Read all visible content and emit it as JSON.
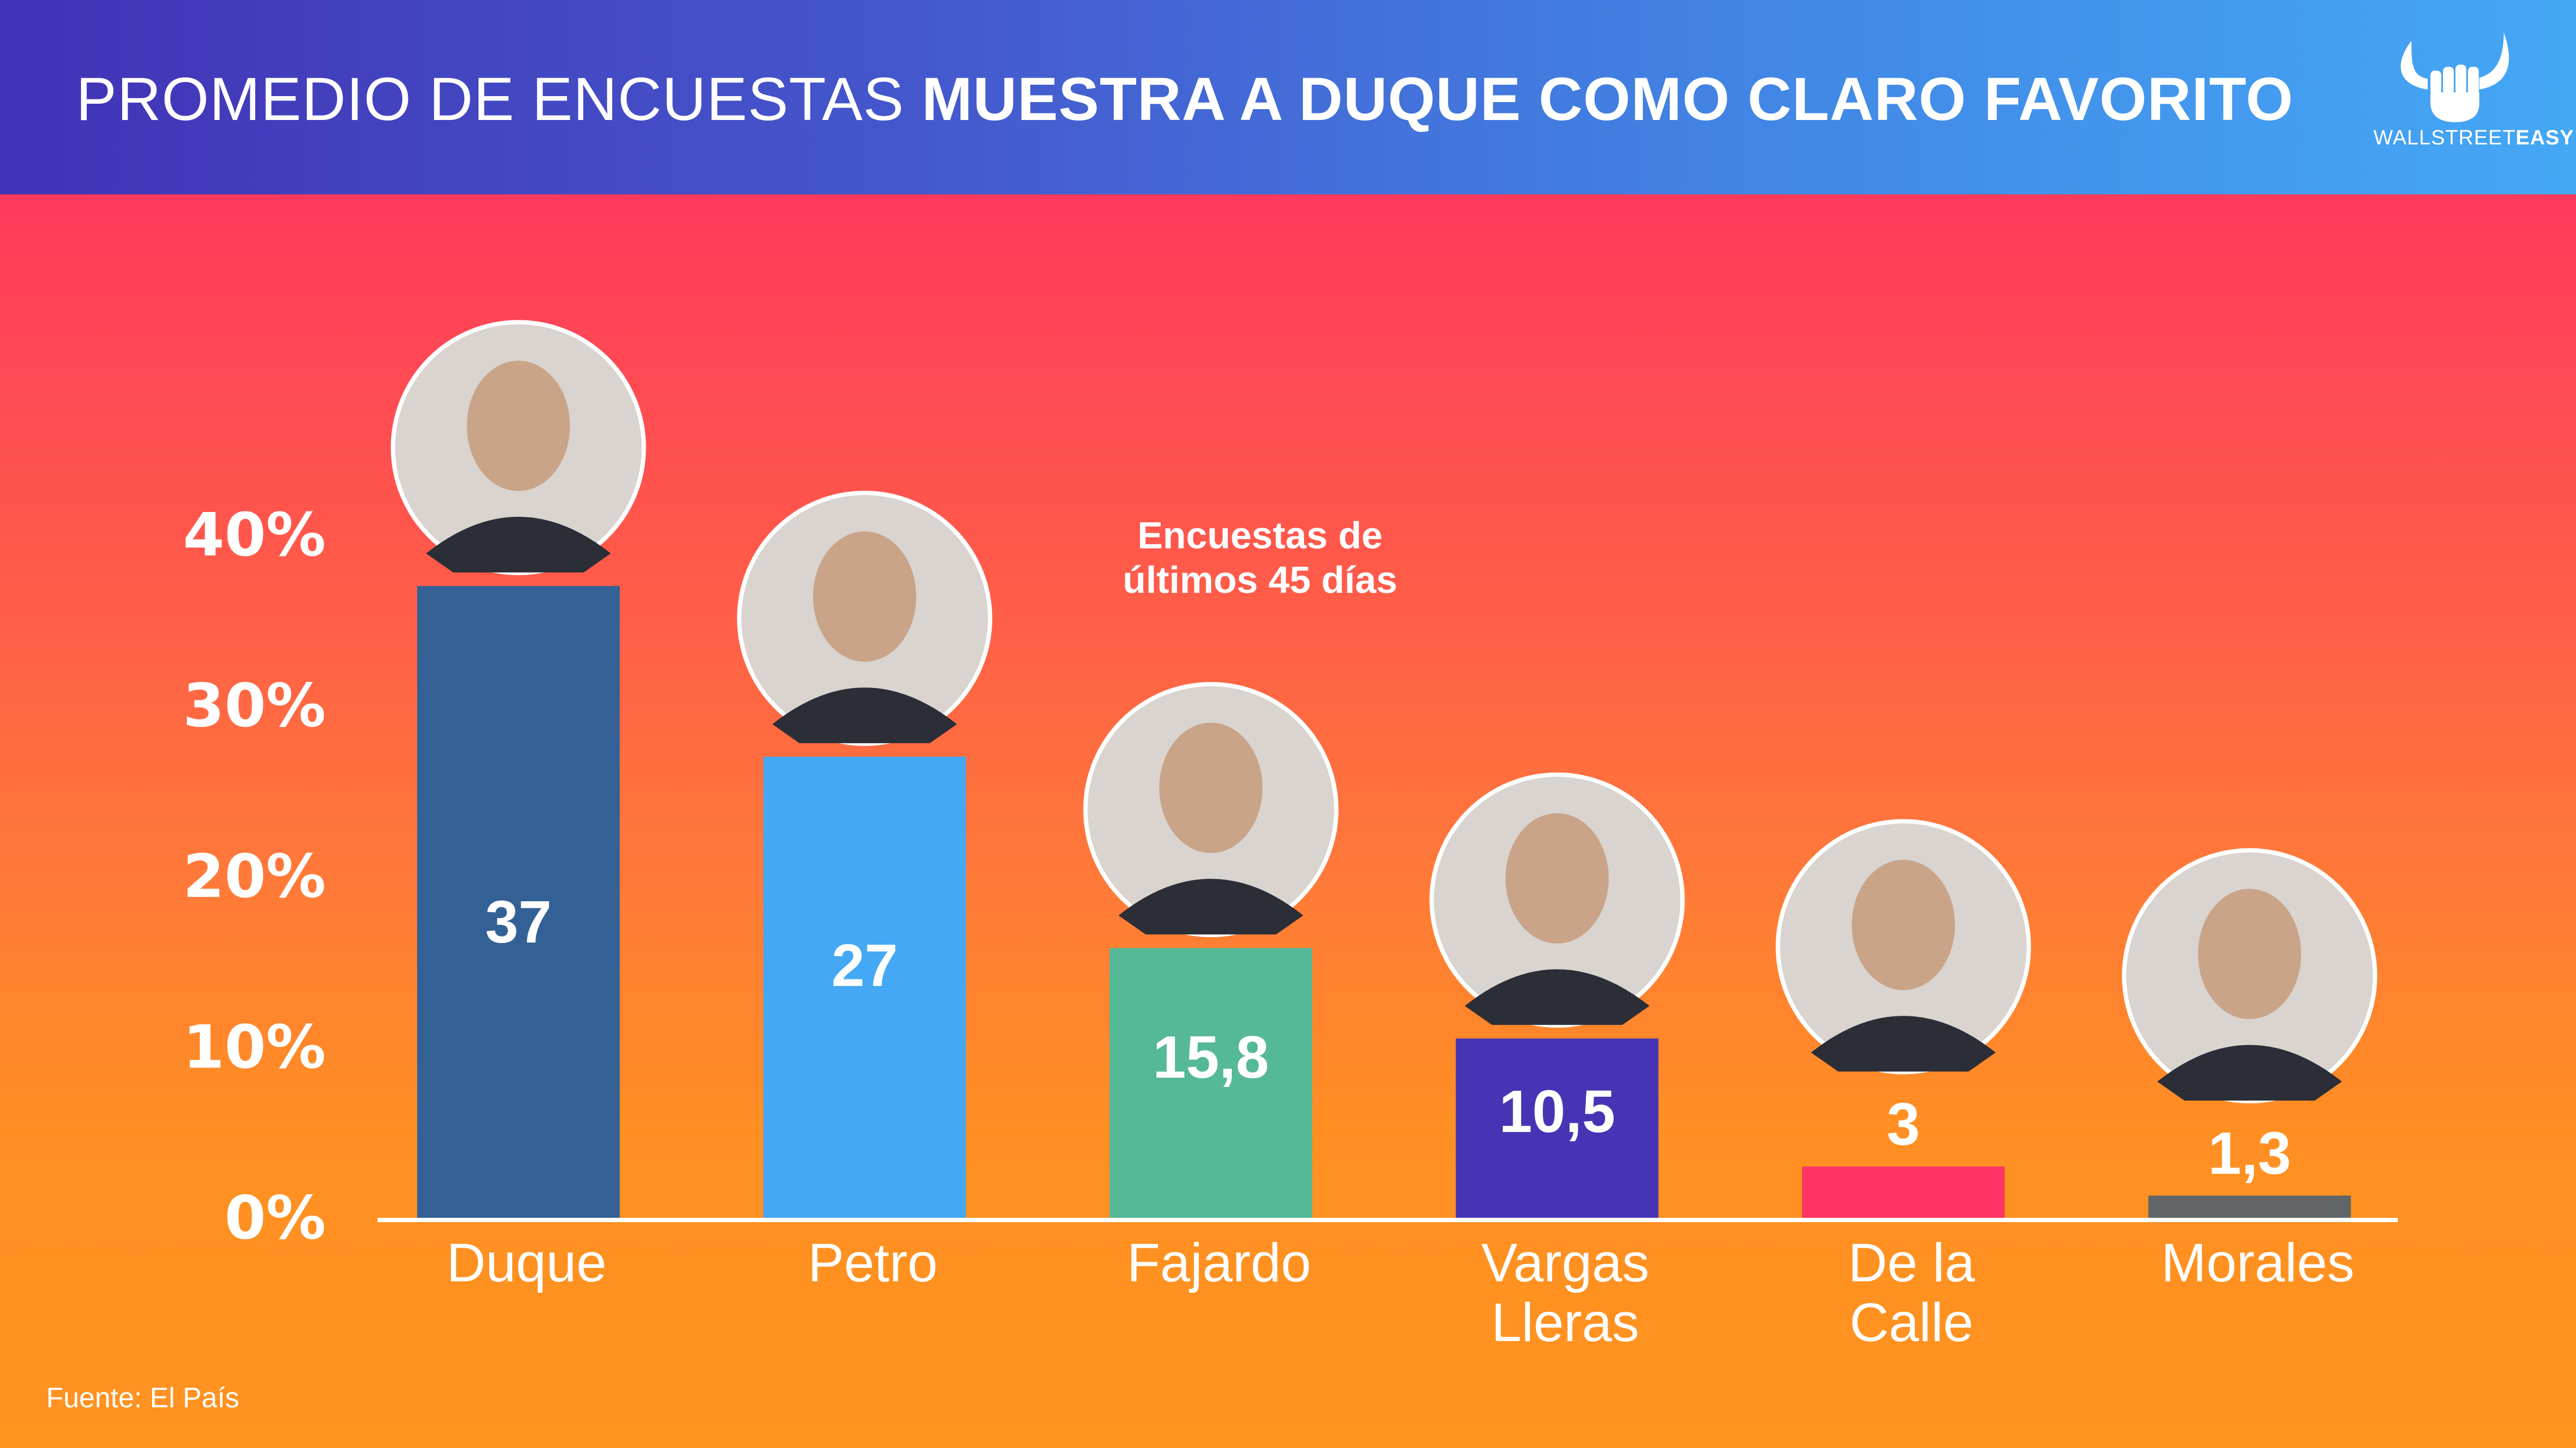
{
  "header": {
    "title_light": "PROMEDIO DE ENCUESTAS ",
    "title_bold": "MUESTRA A DUQUE COMO CLARO FAVORITO",
    "logo_icon": "bull-horns-fist-icon",
    "logo_text_light": "WALLSTREET",
    "logo_text_bold": "EASY",
    "gradient_colors": [
      "#4232B5",
      "#44A8F5"
    ]
  },
  "background_gradient": [
    "#FF3A5C",
    "#FF9320"
  ],
  "annotation": {
    "line1": "Encuestas de",
    "line2": "últimos 45 días"
  },
  "source": "Fuente: El País",
  "chart_data": {
    "type": "bar",
    "title": "PROMEDIO DE ENCUESTAS MUESTRA A DUQUE COMO CLARO FAVORITO",
    "xlabel": "",
    "ylabel": "",
    "ylim": [
      0,
      40
    ],
    "yticks": [
      0,
      10,
      20,
      30,
      40
    ],
    "ytick_labels": [
      "0%",
      "10%",
      "20%",
      "30%",
      "40%"
    ],
    "grid": false,
    "legend": "none",
    "categories": [
      "Duque",
      "Petro",
      "Fajardo",
      "Vargas Lleras",
      "De la Calle",
      "Morales"
    ],
    "category_label_lines": [
      [
        "Duque"
      ],
      [
        "Petro"
      ],
      [
        "Fajardo"
      ],
      [
        "Vargas",
        "Lleras"
      ],
      [
        "De la",
        "Calle"
      ],
      [
        "Morales"
      ]
    ],
    "values": [
      37,
      27,
      15.8,
      10.5,
      3,
      1.3
    ],
    "value_labels": [
      "37",
      "27",
      "15,8",
      "10,5",
      "3",
      "1,3"
    ],
    "colors": [
      "#336196",
      "#44A8F5",
      "#55B897",
      "#4535B5",
      "#FF3464",
      "#616567"
    ],
    "portraits": [
      "duque-portrait",
      "petro-portrait",
      "fajardo-portrait",
      "vargas-lleras-portrait",
      "de-la-calle-portrait",
      "morales-portrait"
    ],
    "annotation": "Encuestas de últimos 45 días",
    "source": "Fuente: El País"
  }
}
